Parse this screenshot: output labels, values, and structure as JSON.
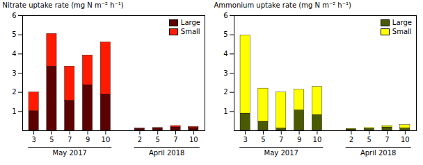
{
  "chart_data": [
    {
      "type": "bar",
      "stacked": true,
      "groups": [
        {
          "name": "May 2017",
          "categories": [
            "3",
            "5",
            "7",
            "9",
            "10"
          ]
        },
        {
          "name": "April 2018",
          "categories": [
            "2",
            "5",
            "7",
            "10"
          ]
        }
      ],
      "series": [
        {
          "name": "Large",
          "color": "#5c0000",
          "values": [
            1.02,
            3.35,
            1.57,
            2.38,
            1.88,
            0.1,
            0.13,
            0.18,
            0.15
          ]
        },
        {
          "name": "Small",
          "color": "#ff1a00",
          "values": [
            0.98,
            1.7,
            1.78,
            1.55,
            2.73,
            0.02,
            0.02,
            0.07,
            0.05
          ]
        }
      ],
      "ylabel": "Nitrate uptake rate (mg N m⁻² h⁻¹)",
      "ylim": [
        0,
        6
      ],
      "yticks": [
        1,
        2,
        3,
        4,
        5,
        6
      ],
      "legend": "upper right"
    },
    {
      "type": "bar",
      "stacked": true,
      "groups": [
        {
          "name": "May 2017",
          "categories": [
            "3",
            "5",
            "7",
            "9",
            "10"
          ]
        },
        {
          "name": "April 2018",
          "categories": [
            "2",
            "5",
            "7",
            "10"
          ]
        }
      ],
      "series": [
        {
          "name": "Large",
          "color": "#4a5a00",
          "values": [
            0.9,
            0.47,
            0.12,
            1.07,
            0.82,
            0.07,
            0.1,
            0.18,
            0.13
          ]
        },
        {
          "name": "Small",
          "color": "#ffff00",
          "values": [
            4.07,
            1.73,
            1.88,
            1.07,
            1.47,
            0.03,
            0.05,
            0.07,
            0.17
          ]
        }
      ],
      "ylabel": "Ammonium uptake rate (mg N m⁻² h⁻¹)",
      "ylim": [
        0,
        6
      ],
      "yticks": [
        1,
        2,
        3,
        4,
        5,
        6
      ],
      "legend": "upper right"
    }
  ]
}
